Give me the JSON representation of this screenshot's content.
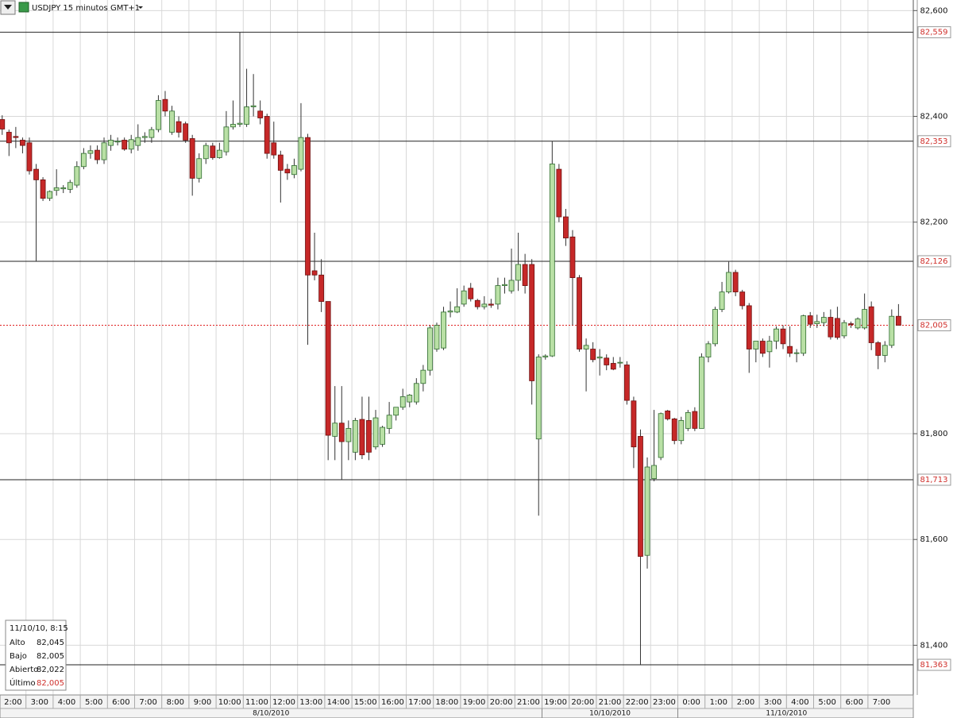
{
  "header": {
    "symbol": "USDJPY 15 minutos GMT+1"
  },
  "chart_data": {
    "type": "candlestick",
    "up_color": "#b9e0a5",
    "up_border": "#2e6b2e",
    "down_color": "#c62828",
    "down_border": "#6e1010",
    "grid": true,
    "ylim": [
      81.306,
      82.62
    ],
    "yticks": [
      {
        "value": 81.4,
        "label": "81,400"
      },
      {
        "value": 81.6,
        "label": "81,600"
      },
      {
        "value": 81.8,
        "label": "81,800"
      },
      {
        "value": 82.2,
        "label": "82,200"
      },
      {
        "value": 82.4,
        "label": "82,400"
      },
      {
        "value": 82.6,
        "label": "82,600"
      }
    ],
    "levels": [
      {
        "value": 82.559,
        "label": "82,559"
      },
      {
        "value": 82.353,
        "label": "82,353"
      },
      {
        "value": 82.126,
        "label": "82,126"
      },
      {
        "value": 81.713,
        "label": "81,713"
      },
      {
        "value": 81.363,
        "label": "81,363"
      }
    ],
    "last": {
      "value": 82.005,
      "label": "82,005"
    },
    "xticks": [
      "2:00",
      "3:00",
      "4:00",
      "5:00",
      "6:00",
      "7:00",
      "8:00",
      "9:00",
      "10:00",
      "11:00",
      "12:00",
      "13:00",
      "14:00",
      "15:00",
      "16:00",
      "17:00",
      "18:00",
      "19:00",
      "20:00",
      "21:00",
      "19:00",
      "20:00",
      "21:00",
      "22:00",
      "23:00",
      "0:00",
      "1:00",
      "2:00",
      "3:00",
      "4:00",
      "5:00",
      "6:00",
      "7:00"
    ],
    "dates": [
      "8/10/2010",
      "10/10/2010",
      "11/10/2010"
    ],
    "candles": [
      {
        "open": 82.394,
        "high": 82.402,
        "low": 82.365,
        "close": 82.376
      },
      {
        "open": 82.37,
        "high": 82.375,
        "low": 82.325,
        "close": 82.35
      },
      {
        "open": 82.362,
        "high": 82.38,
        "low": 82.34,
        "close": 82.36
      },
      {
        "open": 82.355,
        "high": 82.36,
        "low": 82.33,
        "close": 82.345
      },
      {
        "open": 82.35,
        "high": 82.36,
        "low": 82.29,
        "close": 82.297
      },
      {
        "open": 82.3,
        "high": 82.31,
        "low": 82.126,
        "close": 82.28
      },
      {
        "open": 82.28,
        "high": 82.285,
        "low": 82.24,
        "close": 82.245
      },
      {
        "open": 82.245,
        "high": 82.26,
        "low": 82.24,
        "close": 82.258
      },
      {
        "open": 82.26,
        "high": 82.3,
        "low": 82.25,
        "close": 82.265
      },
      {
        "open": 82.263,
        "high": 82.27,
        "low": 82.255,
        "close": 82.265
      },
      {
        "open": 82.262,
        "high": 82.28,
        "low": 82.255,
        "close": 82.275
      },
      {
        "open": 82.27,
        "high": 82.315,
        "low": 82.265,
        "close": 82.305
      },
      {
        "open": 82.305,
        "high": 82.34,
        "low": 82.3,
        "close": 82.33
      },
      {
        "open": 82.33,
        "high": 82.345,
        "low": 82.32,
        "close": 82.335
      },
      {
        "open": 82.336,
        "high": 82.345,
        "low": 82.31,
        "close": 82.318
      },
      {
        "open": 82.318,
        "high": 82.36,
        "low": 82.31,
        "close": 82.35
      },
      {
        "open": 82.345,
        "high": 82.365,
        "low": 82.335,
        "close": 82.355
      },
      {
        "open": 82.352,
        "high": 82.36,
        "low": 82.345,
        "close": 82.353
      },
      {
        "open": 82.355,
        "high": 82.36,
        "low": 82.335,
        "close": 82.338
      },
      {
        "open": 82.338,
        "high": 82.365,
        "low": 82.33,
        "close": 82.356
      },
      {
        "open": 82.345,
        "high": 82.385,
        "low": 82.335,
        "close": 82.36
      },
      {
        "open": 82.36,
        "high": 82.37,
        "low": 82.35,
        "close": 82.362
      },
      {
        "open": 82.36,
        "high": 82.38,
        "low": 82.35,
        "close": 82.375
      },
      {
        "open": 82.375,
        "high": 82.44,
        "low": 82.37,
        "close": 82.43
      },
      {
        "open": 82.432,
        "high": 82.448,
        "low": 82.4,
        "close": 82.41
      },
      {
        "open": 82.37,
        "high": 82.42,
        "low": 82.365,
        "close": 82.41
      },
      {
        "open": 82.39,
        "high": 82.4,
        "low": 82.36,
        "close": 82.37
      },
      {
        "open": 82.386,
        "high": 82.39,
        "low": 82.35,
        "close": 82.355
      },
      {
        "open": 82.358,
        "high": 82.365,
        "low": 82.25,
        "close": 82.283
      },
      {
        "open": 82.283,
        "high": 82.33,
        "low": 82.275,
        "close": 82.32
      },
      {
        "open": 82.32,
        "high": 82.35,
        "low": 82.31,
        "close": 82.345
      },
      {
        "open": 82.344,
        "high": 82.35,
        "low": 82.318,
        "close": 82.322
      },
      {
        "open": 82.322,
        "high": 82.35,
        "low": 82.32,
        "close": 82.336
      },
      {
        "open": 82.333,
        "high": 82.41,
        "low": 82.326,
        "close": 82.38
      },
      {
        "open": 82.38,
        "high": 82.43,
        "low": 82.375,
        "close": 82.385
      },
      {
        "open": 82.385,
        "high": 82.559,
        "low": 82.38,
        "close": 82.387
      },
      {
        "open": 82.385,
        "high": 82.49,
        "low": 82.38,
        "close": 82.418
      },
      {
        "open": 82.418,
        "high": 82.48,
        "low": 82.4,
        "close": 82.42
      },
      {
        "open": 82.41,
        "high": 82.43,
        "low": 82.385,
        "close": 82.397
      },
      {
        "open": 82.4,
        "high": 82.405,
        "low": 82.32,
        "close": 82.33
      },
      {
        "open": 82.35,
        "high": 82.39,
        "low": 82.32,
        "close": 82.327
      },
      {
        "open": 82.327,
        "high": 82.335,
        "low": 82.237,
        "close": 82.298
      },
      {
        "open": 82.3,
        "high": 82.31,
        "low": 82.28,
        "close": 82.293
      },
      {
        "open": 82.29,
        "high": 82.32,
        "low": 82.283,
        "close": 82.307
      },
      {
        "open": 82.3,
        "high": 82.425,
        "low": 82.296,
        "close": 82.36
      },
      {
        "open": 82.36,
        "high": 82.367,
        "low": 81.968,
        "close": 82.1
      },
      {
        "open": 82.108,
        "high": 82.18,
        "low": 82.09,
        "close": 82.1
      },
      {
        "open": 82.1,
        "high": 82.13,
        "low": 82.03,
        "close": 82.05
      },
      {
        "open": 82.05,
        "high": 82.05,
        "low": 81.75,
        "close": 81.797
      },
      {
        "open": 81.795,
        "high": 81.89,
        "low": 81.75,
        "close": 81.82
      },
      {
        "open": 81.82,
        "high": 81.89,
        "low": 81.713,
        "close": 81.785
      },
      {
        "open": 81.785,
        "high": 81.825,
        "low": 81.75,
        "close": 81.81
      },
      {
        "open": 81.765,
        "high": 81.83,
        "low": 81.75,
        "close": 81.825
      },
      {
        "open": 81.827,
        "high": 81.87,
        "low": 81.752,
        "close": 81.76
      },
      {
        "open": 81.825,
        "high": 81.87,
        "low": 81.75,
        "close": 81.765
      },
      {
        "open": 81.775,
        "high": 81.845,
        "low": 81.77,
        "close": 81.83
      },
      {
        "open": 81.78,
        "high": 81.815,
        "low": 81.775,
        "close": 81.812
      },
      {
        "open": 81.81,
        "high": 81.86,
        "low": 81.8,
        "close": 81.835
      },
      {
        "open": 81.835,
        "high": 81.85,
        "low": 81.825,
        "close": 81.85
      },
      {
        "open": 81.85,
        "high": 81.885,
        "low": 81.845,
        "close": 81.87
      },
      {
        "open": 81.86,
        "high": 81.875,
        "low": 81.85,
        "close": 81.873
      },
      {
        "open": 81.86,
        "high": 81.905,
        "low": 81.855,
        "close": 81.895
      },
      {
        "open": 81.895,
        "high": 81.93,
        "low": 81.88,
        "close": 81.92
      },
      {
        "open": 81.92,
        "high": 82.005,
        "low": 81.91,
        "close": 82.0
      },
      {
        "open": 81.96,
        "high": 82.01,
        "low": 81.955,
        "close": 82.005
      },
      {
        "open": 81.962,
        "high": 82.04,
        "low": 81.958,
        "close": 82.03
      },
      {
        "open": 82.03,
        "high": 82.05,
        "low": 82.02,
        "close": 82.032
      },
      {
        "open": 82.03,
        "high": 82.075,
        "low": 82.028,
        "close": 82.04
      },
      {
        "open": 82.045,
        "high": 82.08,
        "low": 82.04,
        "close": 82.07
      },
      {
        "open": 82.075,
        "high": 82.085,
        "low": 82.05,
        "close": 82.055
      },
      {
        "open": 82.052,
        "high": 82.055,
        "low": 82.035,
        "close": 82.04
      },
      {
        "open": 82.04,
        "high": 82.06,
        "low": 82.035,
        "close": 82.045
      },
      {
        "open": 82.045,
        "high": 82.055,
        "low": 82.038,
        "close": 82.043
      },
      {
        "open": 82.045,
        "high": 82.095,
        "low": 82.035,
        "close": 82.08
      },
      {
        "open": 82.08,
        "high": 82.095,
        "low": 82.065,
        "close": 82.082
      },
      {
        "open": 82.07,
        "high": 82.15,
        "low": 82.065,
        "close": 82.09
      },
      {
        "open": 82.09,
        "high": 82.18,
        "low": 82.07,
        "close": 82.12
      },
      {
        "open": 82.12,
        "high": 82.14,
        "low": 82.065,
        "close": 82.08
      },
      {
        "open": 82.12,
        "high": 82.13,
        "low": 81.855,
        "close": 81.9
      },
      {
        "open": 81.79,
        "high": 81.95,
        "low": 81.645,
        "close": 81.945
      },
      {
        "open": 81.945,
        "high": 81.95,
        "low": 81.94,
        "close": 81.947
      },
      {
        "open": 81.947,
        "high": 82.353,
        "low": 81.945,
        "close": 82.31
      },
      {
        "open": 82.3,
        "high": 82.31,
        "low": 82.2,
        "close": 82.21
      },
      {
        "open": 82.21,
        "high": 82.225,
        "low": 82.155,
        "close": 82.17
      },
      {
        "open": 82.172,
        "high": 82.185,
        "low": 82.005,
        "close": 82.095
      },
      {
        "open": 82.095,
        "high": 82.1,
        "low": 81.955,
        "close": 81.96
      },
      {
        "open": 81.96,
        "high": 81.98,
        "low": 81.88,
        "close": 81.967
      },
      {
        "open": 81.96,
        "high": 81.973,
        "low": 81.935,
        "close": 81.94
      },
      {
        "open": 81.943,
        "high": 81.96,
        "low": 81.91,
        "close": 81.945
      },
      {
        "open": 81.943,
        "high": 81.95,
        "low": 81.92,
        "close": 81.93
      },
      {
        "open": 81.933,
        "high": 81.945,
        "low": 81.92,
        "close": 81.922
      },
      {
        "open": 81.935,
        "high": 81.945,
        "low": 81.925,
        "close": 81.935
      },
      {
        "open": 81.93,
        "high": 81.937,
        "low": 81.855,
        "close": 81.863
      },
      {
        "open": 81.862,
        "high": 81.87,
        "low": 81.735,
        "close": 81.775
      },
      {
        "open": 81.795,
        "high": 81.808,
        "low": 81.363,
        "close": 81.568
      },
      {
        "open": 81.57,
        "high": 81.755,
        "low": 81.545,
        "close": 81.737
      },
      {
        "open": 81.715,
        "high": 81.845,
        "low": 81.71,
        "close": 81.74
      },
      {
        "open": 81.755,
        "high": 81.84,
        "low": 81.75,
        "close": 81.838
      },
      {
        "open": 81.843,
        "high": 81.845,
        "low": 81.825,
        "close": 81.828
      },
      {
        "open": 81.828,
        "high": 81.83,
        "low": 81.78,
        "close": 81.787
      },
      {
        "open": 81.787,
        "high": 81.832,
        "low": 81.78,
        "close": 81.825
      },
      {
        "open": 81.81,
        "high": 81.845,
        "low": 81.805,
        "close": 81.84
      },
      {
        "open": 81.842,
        "high": 81.85,
        "low": 81.805,
        "close": 81.81
      },
      {
        "open": 81.81,
        "high": 81.952,
        "low": 81.81,
        "close": 81.945
      },
      {
        "open": 81.945,
        "high": 81.975,
        "low": 81.935,
        "close": 81.97
      },
      {
        "open": 81.97,
        "high": 82.04,
        "low": 81.965,
        "close": 82.035
      },
      {
        "open": 82.035,
        "high": 82.087,
        "low": 82.03,
        "close": 82.068
      },
      {
        "open": 82.068,
        "high": 82.125,
        "low": 82.065,
        "close": 82.105
      },
      {
        "open": 82.105,
        "high": 82.11,
        "low": 82.06,
        "close": 82.068
      },
      {
        "open": 82.068,
        "high": 82.072,
        "low": 82.035,
        "close": 82.042
      },
      {
        "open": 82.042,
        "high": 82.047,
        "low": 81.915,
        "close": 81.96
      },
      {
        "open": 81.96,
        "high": 81.975,
        "low": 81.935,
        "close": 81.975
      },
      {
        "open": 81.975,
        "high": 81.98,
        "low": 81.945,
        "close": 81.952
      },
      {
        "open": 81.955,
        "high": 81.985,
        "low": 81.925,
        "close": 81.975
      },
      {
        "open": 81.975,
        "high": 82.003,
        "low": 81.96,
        "close": 81.998
      },
      {
        "open": 81.998,
        "high": 82.005,
        "low": 81.96,
        "close": 81.97
      },
      {
        "open": 81.965,
        "high": 82.003,
        "low": 81.945,
        "close": 81.952
      },
      {
        "open": 81.952,
        "high": 81.96,
        "low": 81.935,
        "close": 81.953
      },
      {
        "open": 81.952,
        "high": 82.025,
        "low": 81.947,
        "close": 82.023
      },
      {
        "open": 82.023,
        "high": 82.03,
        "low": 82.0,
        "close": 82.007
      },
      {
        "open": 82.008,
        "high": 82.025,
        "low": 82.0,
        "close": 82.012
      },
      {
        "open": 82.01,
        "high": 82.03,
        "low": 82.003,
        "close": 82.02
      },
      {
        "open": 82.02,
        "high": 82.035,
        "low": 81.978,
        "close": 81.983
      },
      {
        "open": 82.018,
        "high": 82.04,
        "low": 81.978,
        "close": 81.982
      },
      {
        "open": 81.985,
        "high": 82.015,
        "low": 81.98,
        "close": 82.01
      },
      {
        "open": 82.008,
        "high": 82.012,
        "low": 82.0,
        "close": 82.007
      },
      {
        "open": 82.0,
        "high": 82.02,
        "low": 81.997,
        "close": 82.017
      },
      {
        "open": 82.0,
        "high": 82.065,
        "low": 81.997,
        "close": 82.035
      },
      {
        "open": 82.04,
        "high": 82.05,
        "low": 81.958,
        "close": 81.972
      },
      {
        "open": 81.972,
        "high": 81.975,
        "low": 81.922,
        "close": 81.948
      },
      {
        "open": 81.948,
        "high": 81.975,
        "low": 81.935,
        "close": 81.967
      },
      {
        "open": 81.967,
        "high": 82.035,
        "low": 81.962,
        "close": 82.022
      },
      {
        "open": 82.022,
        "high": 82.045,
        "low": 82.005,
        "close": 82.005
      }
    ]
  },
  "info": {
    "time": "11/10/10, 8:15",
    "rows": [
      [
        "Alto",
        "82,045"
      ],
      [
        "Bajo",
        "82,005"
      ],
      [
        "Abierto",
        "82,022"
      ],
      [
        "Último",
        "82,005"
      ]
    ]
  }
}
